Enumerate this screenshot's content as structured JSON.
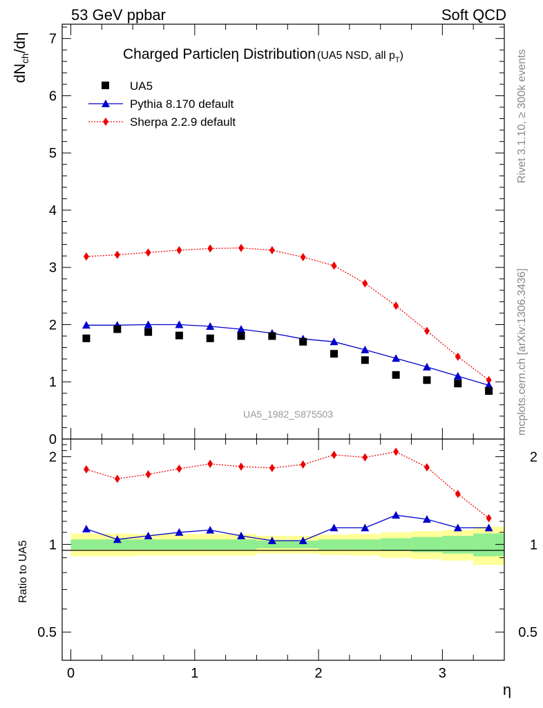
{
  "header": {
    "left": "53 GeV ppbar",
    "right": "Soft QCD"
  },
  "side": {
    "rivet": "Rivet 3.1.10, ≥ 300k events",
    "mcplots": "mcplots.cern.ch [arXiv:1306.3436]"
  },
  "chart_data": [
    {
      "type": "line",
      "panel": "main",
      "title_main": "Charged Particle",
      "title_eta": "η",
      "title_rest": " Distribution",
      "subtitle_prefix": "(UA5 NSD, all p",
      "subtitle_sub": "T",
      "subtitle_suffix": ")",
      "ylabel_prefix": "dN",
      "ylabel_sub": "ch",
      "ylabel_suffix": "/dη",
      "watermark": "UA5_1982_S875503",
      "xlim": [
        -0.07,
        3.5
      ],
      "ylim": [
        0,
        7.25
      ],
      "xticks": [
        "0",
        "1",
        "2",
        "3"
      ],
      "yticks": [
        "0",
        "1",
        "2",
        "3",
        "4",
        "5",
        "6",
        "7"
      ],
      "x": [
        0.125,
        0.375,
        0.625,
        0.875,
        1.125,
        1.375,
        1.625,
        1.875,
        2.125,
        2.375,
        2.625,
        2.875,
        3.125,
        3.375
      ],
      "series": [
        {
          "name": "UA5",
          "style": "square-markers",
          "color": "#000000",
          "values": [
            1.76,
            1.92,
            1.87,
            1.81,
            1.76,
            1.8,
            1.8,
            1.7,
            1.49,
            1.38,
            1.12,
            1.03,
            0.97,
            0.84
          ]
        },
        {
          "name": "Pythia 8.170 default",
          "style": "solid-line-triangles",
          "color": "#0000cc",
          "values": [
            1.99,
            1.99,
            2.0,
            2.0,
            1.97,
            1.92,
            1.85,
            1.75,
            1.7,
            1.56,
            1.41,
            1.26,
            1.1,
            0.94
          ]
        },
        {
          "name": "Sherpa 2.2.9 default",
          "style": "dotted-line-diamonds",
          "color": "#ee0000",
          "values": [
            3.19,
            3.22,
            3.26,
            3.3,
            3.33,
            3.34,
            3.3,
            3.18,
            3.03,
            2.72,
            2.33,
            1.89,
            1.44,
            1.03
          ]
        }
      ]
    },
    {
      "type": "line",
      "panel": "ratio",
      "ylabel": "Ratio to UA5",
      "xlabel": "η",
      "ylim": [
        0.4,
        2.3
      ],
      "yticks": [
        "0.5",
        "1",
        "2"
      ],
      "xticks": [
        "0",
        "1",
        "2",
        "3"
      ],
      "reference": 1,
      "bands": {
        "green": {
          "color": "#90ee90",
          "half_width": [
            0.04,
            0.04,
            0.04,
            0.04,
            0.04,
            0.04,
            0.03,
            0.03,
            0.04,
            0.04,
            0.05,
            0.06,
            0.07,
            0.09
          ]
        },
        "yellow": {
          "color": "#ffff99",
          "half_width": [
            0.09,
            0.09,
            0.085,
            0.085,
            0.085,
            0.085,
            0.07,
            0.07,
            0.08,
            0.085,
            0.1,
            0.11,
            0.12,
            0.15
          ]
        }
      },
      "series": [
        {
          "name": "Pythia 8.170 default",
          "color": "#0000cc",
          "values": [
            1.13,
            1.04,
            1.07,
            1.1,
            1.12,
            1.07,
            1.03,
            1.03,
            1.14,
            1.14,
            1.26,
            1.22,
            1.14,
            1.14
          ]
        },
        {
          "name": "Sherpa 2.2.9 default",
          "color": "#ee0000",
          "values": [
            1.81,
            1.68,
            1.74,
            1.82,
            1.89,
            1.85,
            1.83,
            1.88,
            2.03,
            1.99,
            2.08,
            1.84,
            1.49,
            1.23
          ]
        }
      ]
    }
  ]
}
